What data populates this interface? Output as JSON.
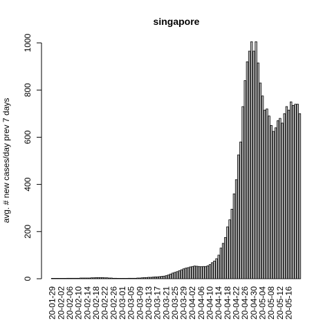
{
  "chart_data": {
    "type": "bar",
    "title": "singapore",
    "xlabel": "",
    "ylabel": "avg. # new cases/day prev  7  days",
    "ylim": [
      0,
      1000
    ],
    "yticks": [
      0,
      200,
      400,
      600,
      800,
      1000
    ],
    "grid": false,
    "start_date": "2020-01-29",
    "xtick_labels": [
      "20-01-29",
      "20-02-02",
      "20-02-06",
      "20-02-10",
      "20-02-14",
      "20-02-18",
      "20-02-22",
      "20-02-26",
      "20-03-01",
      "20-03-05",
      "20-03-09",
      "20-03-13",
      "20-03-17",
      "20-03-21",
      "20-03-25",
      "20-03-29",
      "20-04-02",
      "20-04-06",
      "20-04-10",
      "20-04-14",
      "20-04-18",
      "20-04-22",
      "20-04-26",
      "20-04-30",
      "20-05-04",
      "20-05-08",
      "20-05-12",
      "20-05-16"
    ],
    "bar_color": "#bebebe",
    "values": [
      0,
      1,
      1,
      1,
      1,
      1,
      1,
      2,
      2,
      2,
      2,
      2,
      2,
      3,
      3,
      3,
      3,
      3,
      4,
      4,
      5,
      5,
      5,
      5,
      4,
      4,
      3,
      3,
      2,
      2,
      1,
      1,
      1,
      1,
      1,
      2,
      2,
      2,
      2,
      3,
      3,
      4,
      5,
      5,
      6,
      6,
      7,
      8,
      8,
      9,
      10,
      11,
      13,
      16,
      20,
      24,
      27,
      30,
      34,
      38,
      42,
      45,
      47,
      50,
      52,
      54,
      53,
      52,
      51,
      52,
      52,
      55,
      60,
      68,
      75,
      85,
      100,
      130,
      150,
      175,
      220,
      250,
      295,
      360,
      420,
      525,
      580,
      730,
      840,
      920,
      965,
      1005,
      965,
      1005,
      915,
      830,
      775,
      715,
      720,
      690,
      650,
      625,
      640,
      670,
      680,
      660,
      700,
      730,
      715,
      750,
      735,
      740,
      740,
      700
    ]
  }
}
